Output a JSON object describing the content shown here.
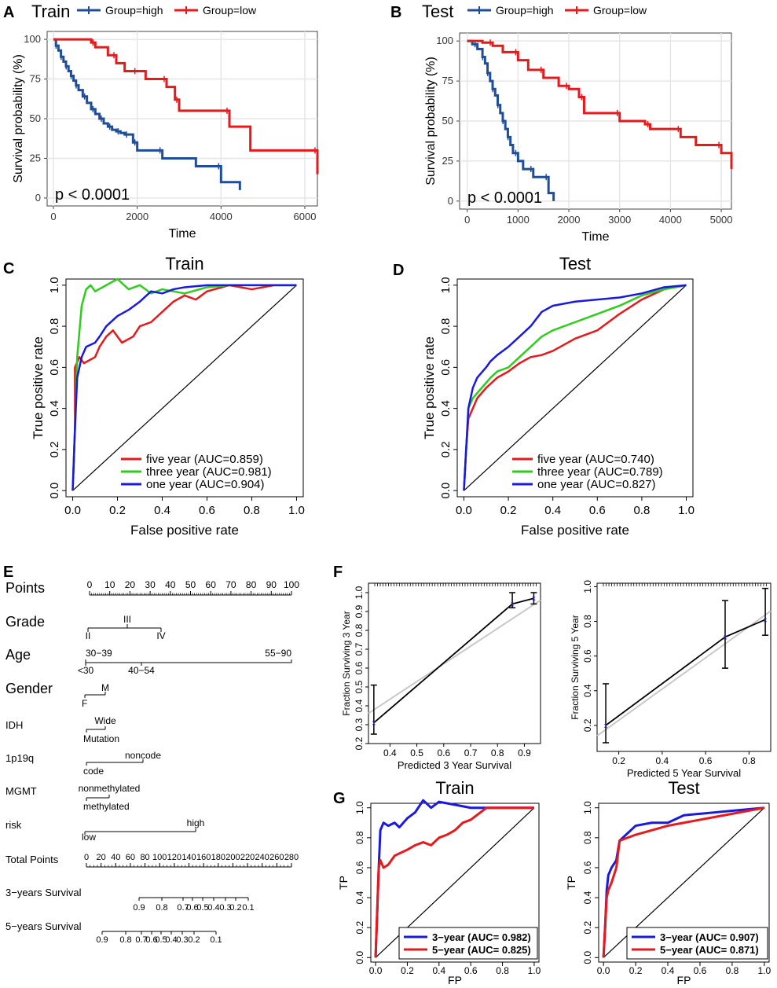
{
  "colors": {
    "high": "#1f4e96",
    "low": "#e41a1c",
    "green": "#2ecc1d",
    "blue": "#1a1adf",
    "red": "#e41a1c",
    "grid": "#e6e6e6",
    "cal_gray": "#c8c8c8",
    "cal_blue": "#3333ff"
  },
  "chart_data": [
    {
      "panel": "A",
      "type": "line",
      "subtype": "kaplan-meier",
      "title": "Train",
      "xlabel": "Time",
      "ylabel": "Survival probability (%)",
      "xlim": [
        -150,
        6300
      ],
      "ylim": [
        -5,
        105
      ],
      "xticks": [
        0,
        2000,
        4000,
        6000
      ],
      "yticks": [
        0,
        25,
        50,
        75,
        100
      ],
      "annotation": "p < 0.0001",
      "legend_labels": [
        "Group=high",
        "Group=low"
      ],
      "series": [
        {
          "name": "Group=high",
          "x": [
            0,
            60,
            120,
            180,
            240,
            300,
            360,
            420,
            480,
            540,
            600,
            700,
            800,
            900,
            1000,
            1100,
            1200,
            1300,
            1400,
            1500,
            1600,
            1700,
            1800,
            1900,
            2000,
            2300,
            2600,
            3400,
            4000,
            4450
          ],
          "y": [
            100,
            96,
            93,
            89,
            86,
            83,
            80,
            77,
            74,
            71,
            68,
            64,
            60,
            56,
            53,
            50,
            47,
            45,
            43,
            42,
            41,
            40,
            40,
            35,
            30,
            30,
            25,
            20,
            10,
            5
          ]
        },
        {
          "name": "Group=low",
          "x": [
            0,
            900,
            1000,
            1300,
            1500,
            1700,
            2000,
            2200,
            2700,
            2900,
            3000,
            4000,
            4200,
            4700,
            6300
          ],
          "y": [
            100,
            98,
            95,
            90,
            85,
            80,
            80,
            75,
            70,
            62,
            55,
            55,
            45,
            30,
            15
          ]
        }
      ]
    },
    {
      "panel": "B",
      "type": "line",
      "subtype": "kaplan-meier",
      "title": "Test",
      "xlabel": "Time",
      "ylabel": "Survival probability (%)",
      "xlim": [
        -150,
        5200
      ],
      "ylim": [
        -5,
        105
      ],
      "xticks": [
        0,
        1000,
        2000,
        3000,
        4000,
        5000
      ],
      "yticks": [
        0,
        25,
        50,
        75,
        100
      ],
      "annotation": "p < 0.0001",
      "legend_labels": [
        "Group=high",
        "Group=low"
      ],
      "series": [
        {
          "name": "Group=high",
          "x": [
            0,
            100,
            200,
            300,
            350,
            400,
            450,
            500,
            550,
            600,
            650,
            700,
            750,
            800,
            850,
            900,
            1000,
            1100,
            1300,
            1500,
            1600,
            1700
          ],
          "y": [
            100,
            98,
            95,
            90,
            86,
            80,
            75,
            70,
            66,
            60,
            55,
            50,
            45,
            40,
            35,
            30,
            25,
            20,
            15,
            15,
            5,
            0
          ]
        },
        {
          "name": "Group=low",
          "x": [
            0,
            300,
            500,
            700,
            1000,
            1200,
            1500,
            1800,
            2000,
            2200,
            2300,
            2800,
            3000,
            3500,
            3600,
            4000,
            4200,
            4500,
            5000,
            5200
          ],
          "y": [
            100,
            99,
            97,
            93,
            88,
            82,
            77,
            72,
            70,
            65,
            55,
            55,
            50,
            48,
            45,
            45,
            40,
            35,
            30,
            20
          ]
        }
      ]
    },
    {
      "panel": "C",
      "type": "line",
      "subtype": "roc",
      "title": "Train",
      "xlabel": "False positive rate",
      "ylabel": "True positive rate",
      "xlim": [
        -0.03,
        1.03
      ],
      "ylim": [
        -0.03,
        1.03
      ],
      "xticks": [
        0,
        0.2,
        0.4,
        0.6,
        0.8,
        1.0
      ],
      "yticks": [
        0,
        0.2,
        0.4,
        0.6,
        0.8,
        1.0
      ],
      "series": [
        {
          "name": "five year (AUC=0.859)",
          "x": [
            0,
            0.01,
            0.01,
            0.03,
            0.05,
            0.1,
            0.12,
            0.15,
            0.18,
            0.22,
            0.27,
            0.3,
            0.35,
            0.4,
            0.45,
            0.5,
            0.55,
            0.6,
            0.7,
            0.8,
            0.9,
            1.0
          ],
          "y": [
            0,
            0.3,
            0.6,
            0.65,
            0.62,
            0.65,
            0.7,
            0.75,
            0.78,
            0.72,
            0.75,
            0.8,
            0.82,
            0.87,
            0.92,
            0.95,
            0.93,
            0.97,
            1.0,
            0.98,
            1.0,
            1.0
          ]
        },
        {
          "name": "three year (AUC=0.981)",
          "x": [
            0,
            0.01,
            0.02,
            0.04,
            0.06,
            0.08,
            0.1,
            0.15,
            0.2,
            0.25,
            0.3,
            0.35,
            0.4,
            0.5,
            0.6,
            0.7,
            1.0
          ],
          "y": [
            0,
            0.3,
            0.65,
            0.9,
            0.98,
            1.0,
            0.97,
            1.0,
            1.03,
            0.98,
            1.0,
            0.96,
            0.98,
            0.96,
            0.99,
            1.0,
            1.0
          ]
        },
        {
          "name": "one year (AUC=0.904)",
          "x": [
            0,
            0.01,
            0.02,
            0.04,
            0.06,
            0.1,
            0.12,
            0.15,
            0.2,
            0.25,
            0.3,
            0.35,
            0.4,
            0.45,
            0.5,
            0.6,
            0.7,
            1.0
          ],
          "y": [
            0,
            0.3,
            0.55,
            0.65,
            0.7,
            0.72,
            0.75,
            0.8,
            0.85,
            0.88,
            0.92,
            0.97,
            0.96,
            0.98,
            0.99,
            1.0,
            1.0,
            1.0
          ]
        }
      ]
    },
    {
      "panel": "D",
      "type": "line",
      "subtype": "roc",
      "title": "Test",
      "xlabel": "False positive rate",
      "ylabel": "True positive rate",
      "xlim": [
        -0.03,
        1.03
      ],
      "ylim": [
        -0.03,
        1.03
      ],
      "xticks": [
        0,
        0.2,
        0.4,
        0.6,
        0.8,
        1.0
      ],
      "yticks": [
        0,
        0.2,
        0.4,
        0.6,
        0.8,
        1.0
      ],
      "series": [
        {
          "name": "five year (AUC=0.740)",
          "x": [
            0,
            0.01,
            0.02,
            0.04,
            0.06,
            0.1,
            0.15,
            0.2,
            0.25,
            0.3,
            0.35,
            0.4,
            0.5,
            0.6,
            0.65,
            0.7,
            0.8,
            0.9,
            1.0
          ],
          "y": [
            0,
            0.2,
            0.35,
            0.4,
            0.45,
            0.5,
            0.55,
            0.58,
            0.62,
            0.65,
            0.66,
            0.68,
            0.74,
            0.78,
            0.82,
            0.86,
            0.93,
            0.98,
            1.0
          ]
        },
        {
          "name": "three year (AUC=0.789)",
          "x": [
            0,
            0.01,
            0.02,
            0.04,
            0.08,
            0.12,
            0.15,
            0.2,
            0.25,
            0.3,
            0.35,
            0.4,
            0.5,
            0.6,
            0.65,
            0.7,
            0.8,
            0.9,
            1.0
          ],
          "y": [
            0,
            0.2,
            0.4,
            0.45,
            0.5,
            0.55,
            0.58,
            0.6,
            0.65,
            0.7,
            0.75,
            0.78,
            0.82,
            0.86,
            0.88,
            0.9,
            0.95,
            0.98,
            1.0
          ]
        },
        {
          "name": "one year (AUC=0.827)",
          "x": [
            0,
            0.01,
            0.02,
            0.04,
            0.06,
            0.1,
            0.12,
            0.15,
            0.2,
            0.25,
            0.3,
            0.35,
            0.4,
            0.5,
            0.6,
            0.7,
            0.8,
            0.9,
            1.0
          ],
          "y": [
            0,
            0.2,
            0.4,
            0.5,
            0.55,
            0.6,
            0.63,
            0.66,
            0.7,
            0.75,
            0.8,
            0.87,
            0.9,
            0.92,
            0.93,
            0.94,
            0.96,
            0.99,
            1.0
          ]
        }
      ]
    },
    {
      "panel": "E",
      "type": "nomogram",
      "rows": [
        {
          "label": "Points",
          "ticks": [
            "0",
            "10",
            "20",
            "30",
            "40",
            "50",
            "60",
            "70",
            "80",
            "90",
            "100"
          ]
        },
        {
          "label": "Grade",
          "items": [
            "II",
            "III",
            "IV"
          ]
        },
        {
          "label": "Age",
          "items": [
            "30−39",
            "<30",
            "40−54",
            "55−90"
          ]
        },
        {
          "label": "Gender",
          "items": [
            "F",
            "M"
          ]
        },
        {
          "label": "IDH",
          "items": [
            "Mutation",
            "Wide"
          ]
        },
        {
          "label": "1p19q",
          "items": [
            "code",
            "noncode"
          ]
        },
        {
          "label": "MGMT",
          "items": [
            "methylated",
            "nonmethylated"
          ]
        },
        {
          "label": "risk",
          "items": [
            "low",
            "high"
          ]
        },
        {
          "label": "Total Points",
          "ticks": [
            "0",
            "20",
            "40",
            "60",
            "80",
            "100",
            "120",
            "140",
            "160",
            "180",
            "200",
            "220",
            "240",
            "260",
            "280"
          ]
        },
        {
          "label": "3−years Survival",
          "ticks": [
            "0.9",
            "0.8",
            "0.7",
            "0.6",
            "0.5",
            "0.4",
            "0.3",
            "0.2",
            "0.1"
          ]
        },
        {
          "label": "5−years Survival",
          "ticks": [
            "0.9",
            "0.8",
            "0.7",
            "0.6",
            "0.5",
            "0.4",
            "0.3",
            "0.2",
            "0.1"
          ]
        }
      ]
    },
    {
      "panel": "F",
      "type": "line",
      "subtype": "calibration",
      "charts": [
        {
          "xlabel": "Predicted  3 Year Survival",
          "ylabel": "Fraction Surviving 3 Year",
          "xlim": [
            0.32,
            0.96
          ],
          "ylim": [
            0.2,
            1.05
          ],
          "xticks": [
            0.4,
            0.5,
            0.6,
            0.7,
            0.8,
            0.9
          ],
          "yticks": [
            0.2,
            0.3,
            0.4,
            0.5,
            0.6,
            0.7,
            0.8,
            0.9,
            1.0
          ],
          "points": [
            {
              "x": 0.34,
              "y": 0.31,
              "lo": 0.25,
              "hi": 0.51
            },
            {
              "x": 0.855,
              "y": 0.94,
              "lo": 0.92,
              "hi": 1.0
            },
            {
              "x": 0.935,
              "y": 0.97,
              "lo": 0.94,
              "hi": 1.0
            }
          ],
          "ideal": [
            [
              0.32,
              0.36
            ],
            [
              0.96,
              0.96
            ]
          ]
        },
        {
          "xlabel": "Predicted  5 Year Survival",
          "ylabel": "Fraction Surviving 5 Year",
          "xlim": [
            0.1,
            0.9
          ],
          "ylim": [
            0.05,
            1.02
          ],
          "xticks": [
            0.2,
            0.4,
            0.6,
            0.8
          ],
          "yticks": [
            0.2,
            0.4,
            0.6,
            0.8,
            1.0
          ],
          "points": [
            {
              "x": 0.14,
              "y": 0.2,
              "lo": 0.1,
              "hi": 0.44
            },
            {
              "x": 0.69,
              "y": 0.71,
              "lo": 0.53,
              "hi": 0.92
            },
            {
              "x": 0.875,
              "y": 0.81,
              "lo": 0.72,
              "hi": 0.99
            }
          ],
          "ideal": [
            [
              0.1,
              0.14
            ],
            [
              0.9,
              0.86
            ]
          ]
        }
      ]
    },
    {
      "panel": "G",
      "type": "line",
      "subtype": "roc",
      "charts": [
        {
          "title": "Train",
          "xlabel": "FP",
          "ylabel": "TP",
          "xlim": [
            -0.03,
            1.03
          ],
          "ylim": [
            -0.03,
            1.03
          ],
          "xticks": [
            0,
            0.2,
            0.4,
            0.6,
            0.8,
            1.0
          ],
          "yticks": [
            0,
            0.2,
            0.4,
            0.6,
            0.8,
            1.0
          ],
          "series": [
            {
              "name": "3−year (AUC= 0.982)",
              "x": [
                0,
                0.02,
                0.03,
                0.05,
                0.08,
                0.12,
                0.15,
                0.2,
                0.25,
                0.3,
                0.35,
                0.4,
                0.5,
                0.6,
                1.0
              ],
              "y": [
                0,
                0.6,
                0.85,
                0.9,
                0.88,
                0.9,
                0.87,
                0.93,
                0.97,
                1.05,
                1.0,
                1.04,
                1.02,
                1.0,
                1.0
              ]
            },
            {
              "name": "5−year (AUC= 0.825)",
              "x": [
                0,
                0.02,
                0.03,
                0.05,
                0.08,
                0.12,
                0.2,
                0.25,
                0.3,
                0.35,
                0.4,
                0.45,
                0.5,
                0.55,
                0.6,
                0.7,
                0.8,
                1.0
              ],
              "y": [
                0,
                0.6,
                0.65,
                0.6,
                0.62,
                0.68,
                0.72,
                0.75,
                0.77,
                0.75,
                0.8,
                0.82,
                0.85,
                0.9,
                0.92,
                1.0,
                1.0,
                1.0
              ]
            }
          ]
        },
        {
          "title": "Test",
          "xlabel": "FP",
          "ylabel": "TP",
          "xlim": [
            -0.03,
            1.03
          ],
          "ylim": [
            -0.03,
            1.03
          ],
          "xticks": [
            0,
            0.2,
            0.4,
            0.6,
            0.8,
            1.0
          ],
          "yticks": [
            0,
            0.2,
            0.4,
            0.6,
            0.8,
            1.0
          ],
          "series": [
            {
              "name": "3−year (AUC= 0.907)",
              "x": [
                0,
                0.01,
                0.02,
                0.03,
                0.05,
                0.08,
                0.1,
                0.2,
                0.3,
                0.4,
                0.5,
                0.6,
                0.7,
                0.8,
                0.9,
                1.0
              ],
              "y": [
                0,
                0.2,
                0.45,
                0.55,
                0.6,
                0.65,
                0.78,
                0.88,
                0.9,
                0.9,
                0.95,
                0.96,
                0.97,
                0.98,
                0.99,
                1.0
              ]
            },
            {
              "name": "5−year (AUC= 0.871)",
              "x": [
                0,
                0.01,
                0.02,
                0.03,
                0.05,
                0.08,
                0.1,
                0.2,
                0.3,
                0.4,
                0.5,
                0.6,
                0.7,
                0.8,
                0.9,
                1.0
              ],
              "y": [
                0,
                0.2,
                0.4,
                0.45,
                0.5,
                0.6,
                0.78,
                0.82,
                0.85,
                0.88,
                0.9,
                0.92,
                0.94,
                0.96,
                0.98,
                1.0
              ]
            }
          ]
        }
      ]
    }
  ],
  "labels": {
    "A": "A",
    "B": "B",
    "C": "C",
    "D": "D",
    "E": "E",
    "F": "F",
    "G": "G"
  }
}
